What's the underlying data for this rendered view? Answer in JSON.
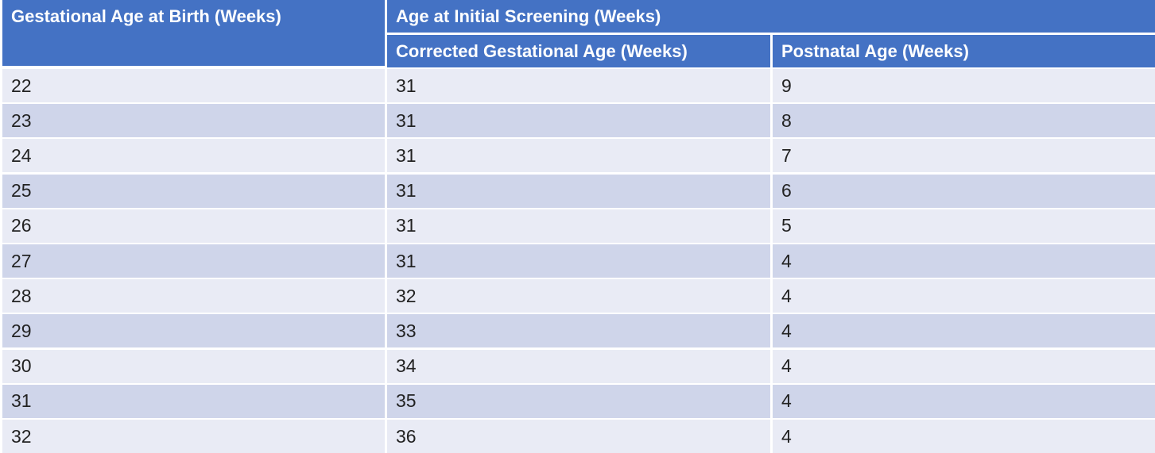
{
  "table": {
    "header": {
      "gestational_age_label": "Gestational Age at Birth (Weeks)",
      "initial_screening_label": "Age at Initial Screening (Weeks)",
      "corrected_age_label": "Corrected Gestational Age (Weeks)",
      "postnatal_age_label": "Postnatal Age (Weeks)"
    },
    "rows": [
      [
        "22",
        "31",
        "9"
      ],
      [
        "23",
        "31",
        "8"
      ],
      [
        "24",
        "31",
        "7"
      ],
      [
        "25",
        "31",
        "6"
      ],
      [
        "26",
        "31",
        "5"
      ],
      [
        "27",
        "31",
        "4"
      ],
      [
        "28",
        "32",
        "4"
      ],
      [
        "29",
        "33",
        "4"
      ],
      [
        "30",
        "34",
        "4"
      ],
      [
        "31",
        "35",
        "4"
      ],
      [
        "32",
        "36",
        "4"
      ]
    ],
    "colors": {
      "header": "#4472c4",
      "row_odd": "#e9ebf5",
      "row_even": "#cfd5ea"
    }
  }
}
